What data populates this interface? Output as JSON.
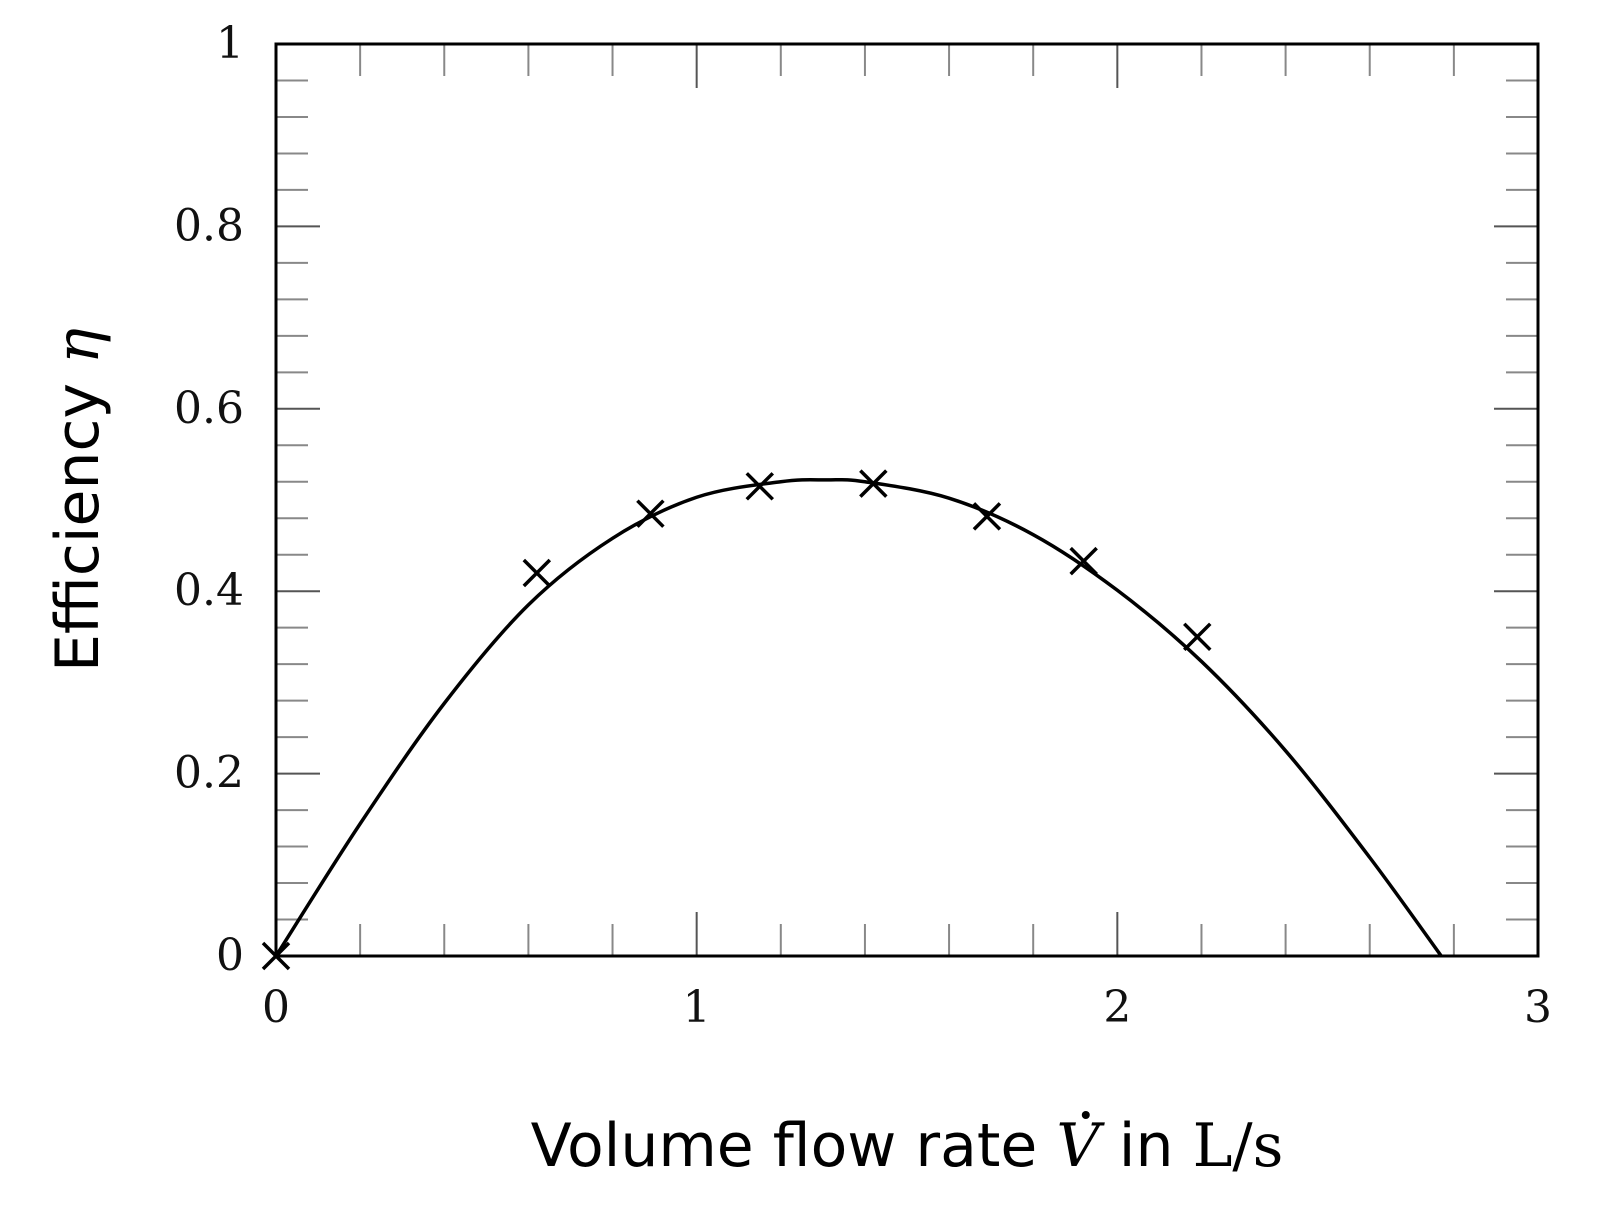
{
  "chart_data": {
    "type": "scatter",
    "xlabel_parts": [
      "Volume flow rate ",
      "V",
      " in ",
      "L/s"
    ],
    "ylabel_parts": [
      "Efficiency ",
      "η"
    ],
    "xlim": [
      0,
      3
    ],
    "ylim": [
      0,
      1
    ],
    "x_ticks": [
      0,
      1,
      2,
      3
    ],
    "x_tick_labels": [
      "0",
      "1",
      "2",
      "3"
    ],
    "y_ticks": [
      0,
      0.2,
      0.4,
      0.6,
      0.8,
      1
    ],
    "y_tick_labels": [
      "0",
      "0.2",
      "0.4",
      "0.6",
      "0.8",
      "1"
    ],
    "x_minor_step": 0.2,
    "y_minor_step": 0.04,
    "grid": false,
    "series": [
      {
        "kind": "scatter",
        "marker": "cross",
        "x": [
          0,
          0.62,
          0.89,
          1.15,
          1.42,
          1.69,
          1.92,
          2.19
        ],
        "y": [
          0,
          0.42,
          0.485,
          0.515,
          0.518,
          0.482,
          0.433,
          0.35
        ]
      },
      {
        "kind": "line",
        "x": [
          0,
          0.2,
          0.4,
          0.6,
          0.8,
          1.0,
          1.2,
          1.31,
          1.4,
          1.6,
          1.8,
          2.0,
          2.2,
          2.4,
          2.6,
          2.77
        ],
        "y": [
          0,
          0.145,
          0.277,
          0.385,
          0.458,
          0.503,
          0.52,
          0.522,
          0.52,
          0.502,
          0.462,
          0.401,
          0.323,
          0.225,
          0.108,
          0
        ]
      }
    ]
  }
}
